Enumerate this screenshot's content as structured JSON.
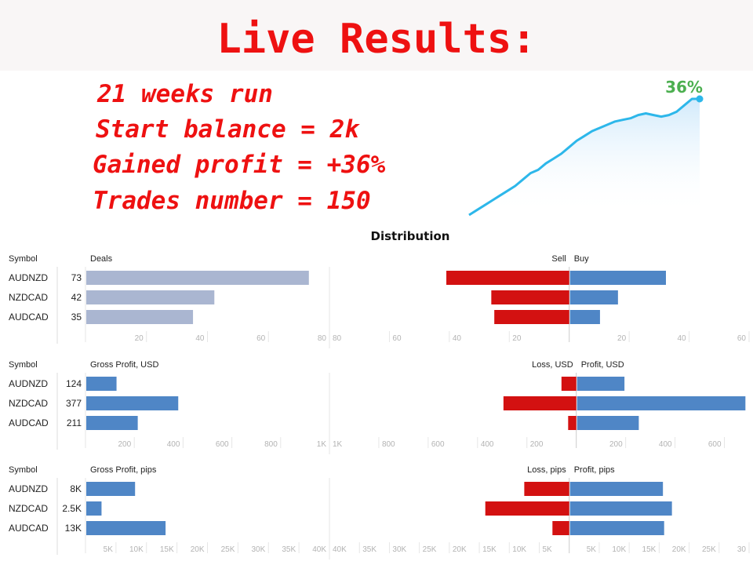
{
  "header": {
    "title": "Live Results:"
  },
  "stats": [
    "21 weeks run",
    "Start balance = 2k",
    "Gained profit = +36%",
    "Trades number = 150"
  ],
  "growth_label": "36%",
  "colors": {
    "red_text": "#ee1111",
    "deals_bar": "#aab6d1",
    "blue_bar": "#4f86c6",
    "red_bar": "#d31111",
    "growth_line": "#2db7ea",
    "growth_label": "#4caf50"
  },
  "distribution_title": "Distribution",
  "chart_data": [
    {
      "type": "line",
      "title": "",
      "end_label": "36%",
      "x": [
        0,
        1,
        2,
        3,
        4,
        5,
        6,
        7,
        8,
        9,
        10,
        11,
        12,
        13,
        14,
        15,
        16,
        17,
        18,
        19,
        20,
        21,
        22,
        23,
        24,
        25,
        26,
        27,
        28,
        29,
        30
      ],
      "y": [
        0,
        1.5,
        3,
        4.5,
        6,
        7.5,
        9,
        11,
        13,
        14,
        16,
        17.5,
        19,
        21,
        23,
        24.5,
        26,
        27,
        28,
        29,
        29.5,
        30,
        31,
        31.5,
        31,
        30.5,
        31,
        32,
        34,
        36,
        36
      ],
      "ylim": [
        0,
        36
      ]
    },
    {
      "type": "bar",
      "title": "Distribution",
      "symbol_header": "Symbol",
      "left": {
        "header": "Deals",
        "categories": [
          "AUDNZD",
          "NZDCAD",
          "AUDCAD"
        ],
        "values": [
          73,
          42,
          35
        ],
        "labels": [
          "73",
          "42",
          "35"
        ],
        "ticks": [
          "20",
          "40",
          "60",
          "80"
        ],
        "xlim": [
          0,
          80
        ]
      },
      "right": {
        "left_header": "Sell",
        "right_header": "Buy",
        "negative_values": [
          41,
          26,
          25
        ],
        "positive_values": [
          32,
          16,
          10
        ],
        "left_ticks": [
          "80",
          "60",
          "40",
          "20"
        ],
        "right_ticks": [
          "20",
          "40",
          "60"
        ],
        "xlim": [
          -80,
          60
        ]
      }
    },
    {
      "type": "bar",
      "symbol_header": "Symbol",
      "left": {
        "header": "Gross Profit, USD",
        "categories": [
          "AUDNZD",
          "NZDCAD",
          "AUDCAD"
        ],
        "values": [
          124,
          377,
          211
        ],
        "labels": [
          "124",
          "377",
          "211"
        ],
        "ticks": [
          "200",
          "400",
          "600",
          "800",
          "1K"
        ],
        "xlim": [
          0,
          1000
        ]
      },
      "right": {
        "left_header": "Loss, USD",
        "right_header": "Profit, USD",
        "negative_values": [
          60,
          295,
          33
        ],
        "positive_values": [
          192,
          682,
          250
        ],
        "left_ticks": [
          "1K",
          "800",
          "600",
          "400",
          "200"
        ],
        "right_ticks": [
          "200",
          "400",
          "600"
        ],
        "xlim": [
          -1000,
          700
        ]
      }
    },
    {
      "type": "bar",
      "symbol_header": "Symbol",
      "left": {
        "header": "Gross Profit, pips",
        "categories": [
          "AUDNZD",
          "NZDCAD",
          "AUDCAD"
        ],
        "values": [
          8000,
          2500,
          13000
        ],
        "labels": [
          "8K",
          "2.5K",
          "13K"
        ],
        "ticks": [
          "5K",
          "10K",
          "15K",
          "20K",
          "25K",
          "30K",
          "35K",
          "40K"
        ],
        "xlim": [
          0,
          40000
        ]
      },
      "right": {
        "left_header": "Loss, pips",
        "right_header": "Profit, pips",
        "negative_values": [
          7500,
          14000,
          2800
        ],
        "positive_values": [
          15500,
          17000,
          15700
        ],
        "left_ticks": [
          "40K",
          "35K",
          "30K",
          "25K",
          "20K",
          "15K",
          "10K",
          "5K"
        ],
        "right_ticks": [
          "5K",
          "10K",
          "15K",
          "20K",
          "25K",
          "30"
        ],
        "xlim": [
          -40000,
          30000
        ]
      }
    }
  ]
}
